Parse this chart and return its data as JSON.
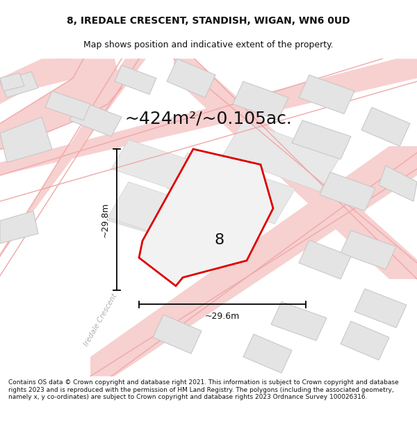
{
  "title_line1": "8, IREDALE CRESCENT, STANDISH, WIGAN, WN6 0UD",
  "title_line2": "Map shows position and indicative extent of the property.",
  "area_label": "~424m²/~0.105ac.",
  "plot_number": "8",
  "dim_width_label": "~29.6m",
  "dim_height_label": "~29.8m",
  "footer_text": "Contains OS data © Crown copyright and database right 2021. This information is subject to Crown copyright and database rights 2023 and is reproduced with the permission of HM Land Registry. The polygons (including the associated geometry, namely x, y co-ordinates) are subject to Crown copyright and database rights 2023 Ordnance Survey 100026316.",
  "bg_color": "#ffffff",
  "map_bg": "#ffffff",
  "plot_fill": "#f2f2f2",
  "plot_edge": "#dd0000",
  "road_color": "#f7d0d0",
  "road_line_color": "#f0a8a8",
  "building_fill": "#e4e4e4",
  "building_edge": "#c8c8c8",
  "dim_line_color": "#000000",
  "text_color": "#111111",
  "street_label": "Iredale Crescent",
  "figsize": [
    6.0,
    6.25
  ],
  "dpi": 100,
  "title_fontsize": 10,
  "subtitle_fontsize": 9,
  "area_fontsize": 18,
  "dim_fontsize": 9,
  "plot_label_fontsize": 16,
  "footer_fontsize": 6.5
}
